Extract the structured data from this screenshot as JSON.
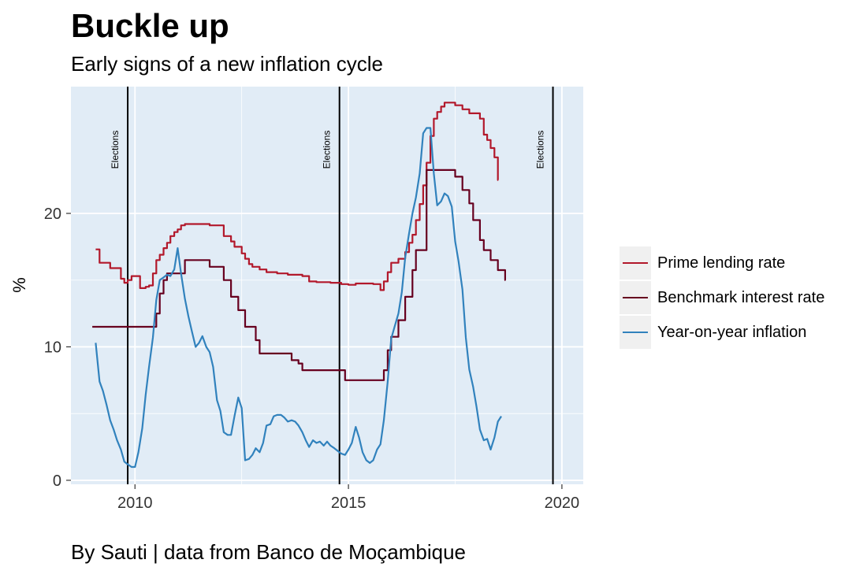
{
  "title": "Buckle up",
  "subtitle": "Early signs of a new inflation cycle",
  "caption": "By Sauti | data from Banco de Moçambique",
  "chart_data": {
    "type": "line",
    "ylabel": "%",
    "xlabel": "",
    "xlim": [
      2008.5,
      2020.5
    ],
    "ylim": [
      -0.3,
      29.5
    ],
    "x_ticks": [
      2010,
      2015,
      2020
    ],
    "y_ticks": [
      0,
      10,
      20
    ],
    "grid": true,
    "legend_position": "right",
    "annotations": [
      {
        "x": 2009.83,
        "label": "Elections"
      },
      {
        "x": 2014.79,
        "label": "Elections"
      },
      {
        "x": 2019.79,
        "label": "Elections"
      }
    ],
    "series": [
      {
        "name": "Prime lending rate",
        "color": "#b2182b",
        "step": true,
        "points": [
          [
            2009.08,
            17.3
          ],
          [
            2009.17,
            16.3
          ],
          [
            2009.42,
            15.9
          ],
          [
            2009.67,
            15.1
          ],
          [
            2009.75,
            14.8
          ],
          [
            2009.83,
            15.0
          ],
          [
            2009.92,
            15.3
          ],
          [
            2010.12,
            14.4
          ],
          [
            2010.25,
            14.5
          ],
          [
            2010.33,
            14.6
          ],
          [
            2010.42,
            15.5
          ],
          [
            2010.5,
            16.5
          ],
          [
            2010.58,
            16.9
          ],
          [
            2010.67,
            17.4
          ],
          [
            2010.75,
            17.8
          ],
          [
            2010.83,
            18.3
          ],
          [
            2010.92,
            18.6
          ],
          [
            2011.0,
            18.8
          ],
          [
            2011.08,
            19.1
          ],
          [
            2011.17,
            19.2
          ],
          [
            2011.5,
            19.2
          ],
          [
            2011.75,
            19.1
          ],
          [
            2012.08,
            18.3
          ],
          [
            2012.25,
            17.9
          ],
          [
            2012.33,
            17.5
          ],
          [
            2012.5,
            17.0
          ],
          [
            2012.58,
            16.6
          ],
          [
            2012.67,
            16.2
          ],
          [
            2012.75,
            16.0
          ],
          [
            2012.92,
            15.8
          ],
          [
            2013.08,
            15.6
          ],
          [
            2013.33,
            15.5
          ],
          [
            2013.58,
            15.4
          ],
          [
            2013.92,
            15.3
          ],
          [
            2014.08,
            14.9
          ],
          [
            2014.25,
            14.85
          ],
          [
            2014.58,
            14.8
          ],
          [
            2014.83,
            14.7
          ],
          [
            2015.0,
            14.65
          ],
          [
            2015.17,
            14.75
          ],
          [
            2015.58,
            14.7
          ],
          [
            2015.75,
            14.25
          ],
          [
            2015.83,
            14.9
          ],
          [
            2015.92,
            15.6
          ],
          [
            2016.0,
            16.3
          ],
          [
            2016.17,
            16.6
          ],
          [
            2016.33,
            17.1
          ],
          [
            2016.42,
            17.8
          ],
          [
            2016.5,
            18.4
          ],
          [
            2016.58,
            19.5
          ],
          [
            2016.67,
            20.7
          ],
          [
            2016.75,
            22.1
          ],
          [
            2016.83,
            23.8
          ],
          [
            2016.92,
            25.8
          ],
          [
            2017.0,
            27.1
          ],
          [
            2017.08,
            27.6
          ],
          [
            2017.17,
            28.0
          ],
          [
            2017.25,
            28.3
          ],
          [
            2017.5,
            28.1
          ],
          [
            2017.67,
            27.8
          ],
          [
            2017.83,
            27.5
          ],
          [
            2018.08,
            27.1
          ],
          [
            2018.17,
            25.9
          ],
          [
            2018.25,
            25.5
          ],
          [
            2018.33,
            24.9
          ],
          [
            2018.42,
            24.2
          ],
          [
            2018.5,
            22.5
          ]
        ]
      },
      {
        "name": "Benchmark interest rate",
        "color": "#67001f",
        "step": true,
        "points": [
          [
            2009.0,
            11.5
          ],
          [
            2010.42,
            11.5
          ],
          [
            2010.5,
            12.5
          ],
          [
            2010.58,
            14.0
          ],
          [
            2010.67,
            15.0
          ],
          [
            2010.75,
            15.5
          ],
          [
            2011.17,
            16.5
          ],
          [
            2011.67,
            16.5
          ],
          [
            2011.75,
            16.0
          ],
          [
            2012.08,
            15.0
          ],
          [
            2012.25,
            13.75
          ],
          [
            2012.42,
            12.75
          ],
          [
            2012.58,
            11.5
          ],
          [
            2012.83,
            10.5
          ],
          [
            2012.92,
            9.5
          ],
          [
            2013.58,
            9.5
          ],
          [
            2013.67,
            9.0
          ],
          [
            2013.83,
            8.75
          ],
          [
            2013.92,
            8.25
          ],
          [
            2014.83,
            8.25
          ],
          [
            2014.92,
            7.5
          ],
          [
            2015.75,
            7.5
          ],
          [
            2015.83,
            8.25
          ],
          [
            2015.92,
            9.75
          ],
          [
            2016.0,
            10.75
          ],
          [
            2016.17,
            12.0
          ],
          [
            2016.33,
            13.75
          ],
          [
            2016.5,
            15.75
          ],
          [
            2016.58,
            17.25
          ],
          [
            2016.83,
            23.25
          ],
          [
            2017.33,
            23.25
          ],
          [
            2017.5,
            22.75
          ],
          [
            2017.67,
            21.75
          ],
          [
            2017.83,
            20.75
          ],
          [
            2017.92,
            19.5
          ],
          [
            2018.08,
            18.0
          ],
          [
            2018.17,
            17.25
          ],
          [
            2018.33,
            16.5
          ],
          [
            2018.5,
            15.75
          ],
          [
            2018.67,
            15.75
          ],
          [
            2018.67,
            15.0
          ]
        ]
      },
      {
        "name": "Year-on-year inflation",
        "color": "#3182bd",
        "step": false,
        "points": [
          [
            2009.08,
            10.3
          ],
          [
            2009.17,
            7.4
          ],
          [
            2009.25,
            6.7
          ],
          [
            2009.33,
            5.7
          ],
          [
            2009.42,
            4.5
          ],
          [
            2009.5,
            3.8
          ],
          [
            2009.58,
            3.0
          ],
          [
            2009.67,
            2.3
          ],
          [
            2009.75,
            1.4
          ],
          [
            2009.83,
            1.2
          ],
          [
            2009.92,
            1.0
          ],
          [
            2010.0,
            1.0
          ],
          [
            2010.08,
            2.1
          ],
          [
            2010.17,
            3.9
          ],
          [
            2010.25,
            6.4
          ],
          [
            2010.33,
            8.5
          ],
          [
            2010.42,
            10.7
          ],
          [
            2010.5,
            13.5
          ],
          [
            2010.58,
            15.0
          ],
          [
            2010.67,
            15.2
          ],
          [
            2010.75,
            15.4
          ],
          [
            2010.83,
            15.3
          ],
          [
            2010.92,
            15.8
          ],
          [
            2011.0,
            17.4
          ],
          [
            2011.08,
            15.5
          ],
          [
            2011.17,
            13.6
          ],
          [
            2011.25,
            12.3
          ],
          [
            2011.33,
            11.2
          ],
          [
            2011.42,
            10.0
          ],
          [
            2011.5,
            10.3
          ],
          [
            2011.58,
            10.8
          ],
          [
            2011.67,
            10.0
          ],
          [
            2011.75,
            9.6
          ],
          [
            2011.83,
            8.5
          ],
          [
            2011.92,
            6.0
          ],
          [
            2012.0,
            5.2
          ],
          [
            2012.08,
            3.6
          ],
          [
            2012.17,
            3.4
          ],
          [
            2012.25,
            3.4
          ],
          [
            2012.33,
            4.8
          ],
          [
            2012.42,
            6.2
          ],
          [
            2012.5,
            5.4
          ],
          [
            2012.58,
            1.5
          ],
          [
            2012.67,
            1.6
          ],
          [
            2012.75,
            1.9
          ],
          [
            2012.83,
            2.4
          ],
          [
            2012.92,
            2.1
          ],
          [
            2013.0,
            2.8
          ],
          [
            2013.08,
            4.1
          ],
          [
            2013.17,
            4.2
          ],
          [
            2013.25,
            4.8
          ],
          [
            2013.33,
            4.9
          ],
          [
            2013.42,
            4.9
          ],
          [
            2013.5,
            4.7
          ],
          [
            2013.58,
            4.4
          ],
          [
            2013.67,
            4.5
          ],
          [
            2013.75,
            4.4
          ],
          [
            2013.83,
            4.1
          ],
          [
            2013.92,
            3.6
          ],
          [
            2014.0,
            3.0
          ],
          [
            2014.08,
            2.5
          ],
          [
            2014.17,
            3.0
          ],
          [
            2014.25,
            2.8
          ],
          [
            2014.33,
            2.9
          ],
          [
            2014.42,
            2.6
          ],
          [
            2014.5,
            2.9
          ],
          [
            2014.58,
            2.6
          ],
          [
            2014.67,
            2.4
          ],
          [
            2014.75,
            2.2
          ],
          [
            2014.83,
            2.0
          ],
          [
            2014.92,
            1.9
          ],
          [
            2015.0,
            2.3
          ],
          [
            2015.08,
            2.8
          ],
          [
            2015.17,
            4.0
          ],
          [
            2015.25,
            3.2
          ],
          [
            2015.33,
            2.1
          ],
          [
            2015.42,
            1.5
          ],
          [
            2015.5,
            1.3
          ],
          [
            2015.58,
            1.5
          ],
          [
            2015.67,
            2.3
          ],
          [
            2015.75,
            2.7
          ],
          [
            2015.83,
            4.5
          ],
          [
            2015.92,
            7.4
          ],
          [
            2016.0,
            10.6
          ],
          [
            2016.08,
            11.5
          ],
          [
            2016.17,
            12.5
          ],
          [
            2016.25,
            14.1
          ],
          [
            2016.33,
            16.7
          ],
          [
            2016.42,
            18.5
          ],
          [
            2016.5,
            20.0
          ],
          [
            2016.58,
            21.2
          ],
          [
            2016.67,
            23.0
          ],
          [
            2016.75,
            26.0
          ],
          [
            2016.83,
            26.4
          ],
          [
            2016.92,
            26.4
          ],
          [
            2017.0,
            23.0
          ],
          [
            2017.08,
            20.6
          ],
          [
            2017.17,
            20.9
          ],
          [
            2017.25,
            21.5
          ],
          [
            2017.33,
            21.3
          ],
          [
            2017.42,
            20.5
          ],
          [
            2017.5,
            17.9
          ],
          [
            2017.58,
            16.4
          ],
          [
            2017.67,
            14.3
          ],
          [
            2017.75,
            10.7
          ],
          [
            2017.83,
            8.3
          ],
          [
            2017.92,
            7.0
          ],
          [
            2018.0,
            5.5
          ],
          [
            2018.08,
            3.8
          ],
          [
            2018.17,
            3.0
          ],
          [
            2018.25,
            3.1
          ],
          [
            2018.33,
            2.3
          ],
          [
            2018.42,
            3.2
          ],
          [
            2018.5,
            4.4
          ],
          [
            2018.58,
            4.8
          ]
        ]
      }
    ]
  }
}
